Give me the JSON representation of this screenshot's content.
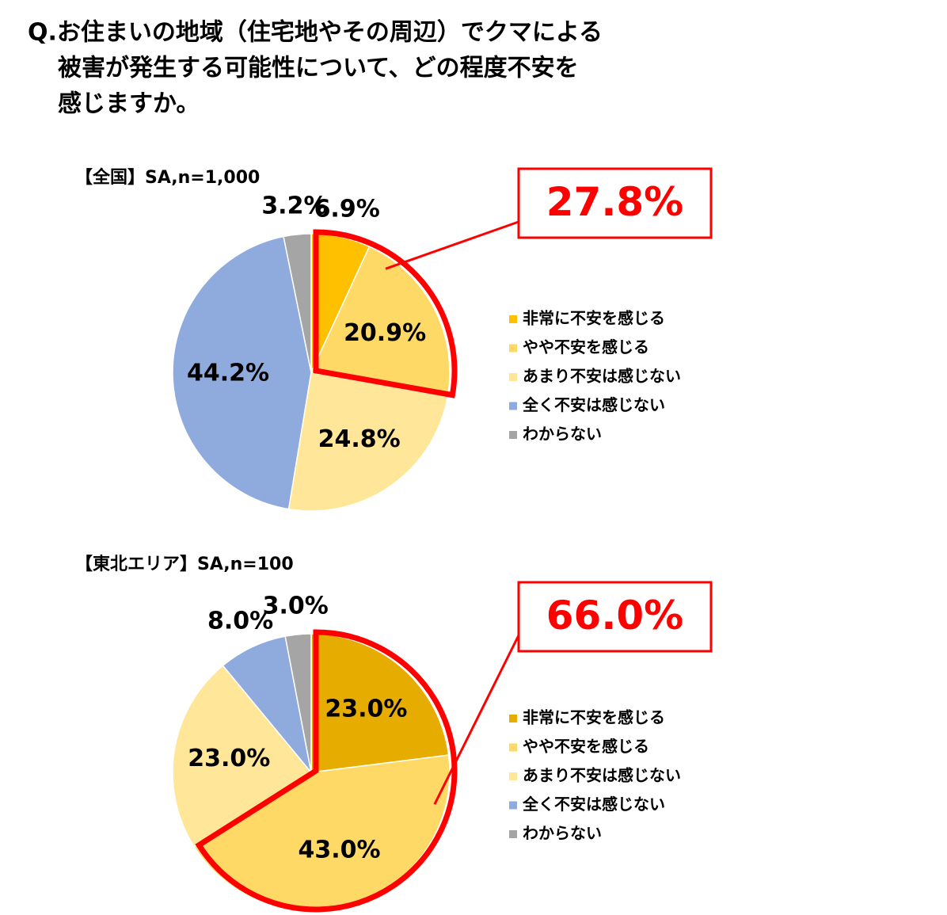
{
  "question": [
    "Q.お住まいの地域（住宅地やその周辺）でクマによる",
    "被害が発生する可能性について、どの程度不安を",
    "感じますか。"
  ],
  "chart_data": [
    {
      "type": "pie",
      "title": "【全国】SA,n=1,000",
      "categories": [
        "非常に不安を感じる",
        "やや不安を感じる",
        "あまり不安は感じない",
        "全く不安は感じない",
        "わからない"
      ],
      "values": [
        6.9,
        20.9,
        24.8,
        44.2,
        3.2
      ],
      "value_labels": [
        "6.9%",
        "20.9%",
        "24.8%",
        "44.2%",
        "3.2%"
      ],
      "colors": [
        "#ffc000",
        "#ffd966",
        "#ffe699",
        "#8faadc",
        "#a5a5a5"
      ],
      "highlight": {
        "value": 27.8,
        "label": "27.8%"
      }
    },
    {
      "type": "pie",
      "title": "【東北エリア】SA,n=100",
      "categories": [
        "非常に不安を感じる",
        "やや不安を感じる",
        "あまり不安は感じない",
        "全く不安は感じない",
        "わからない"
      ],
      "values": [
        23.0,
        43.0,
        23.0,
        8.0,
        3.0
      ],
      "value_labels": [
        "23.0%",
        "43.0%",
        "23.0%",
        "8.0%",
        "3.0%"
      ],
      "colors": [
        "#e6ac00",
        "#ffd966",
        "#ffe699",
        "#8faadc",
        "#a5a5a5"
      ],
      "highlight": {
        "value": 66.0,
        "label": "66.0%"
      }
    }
  ]
}
